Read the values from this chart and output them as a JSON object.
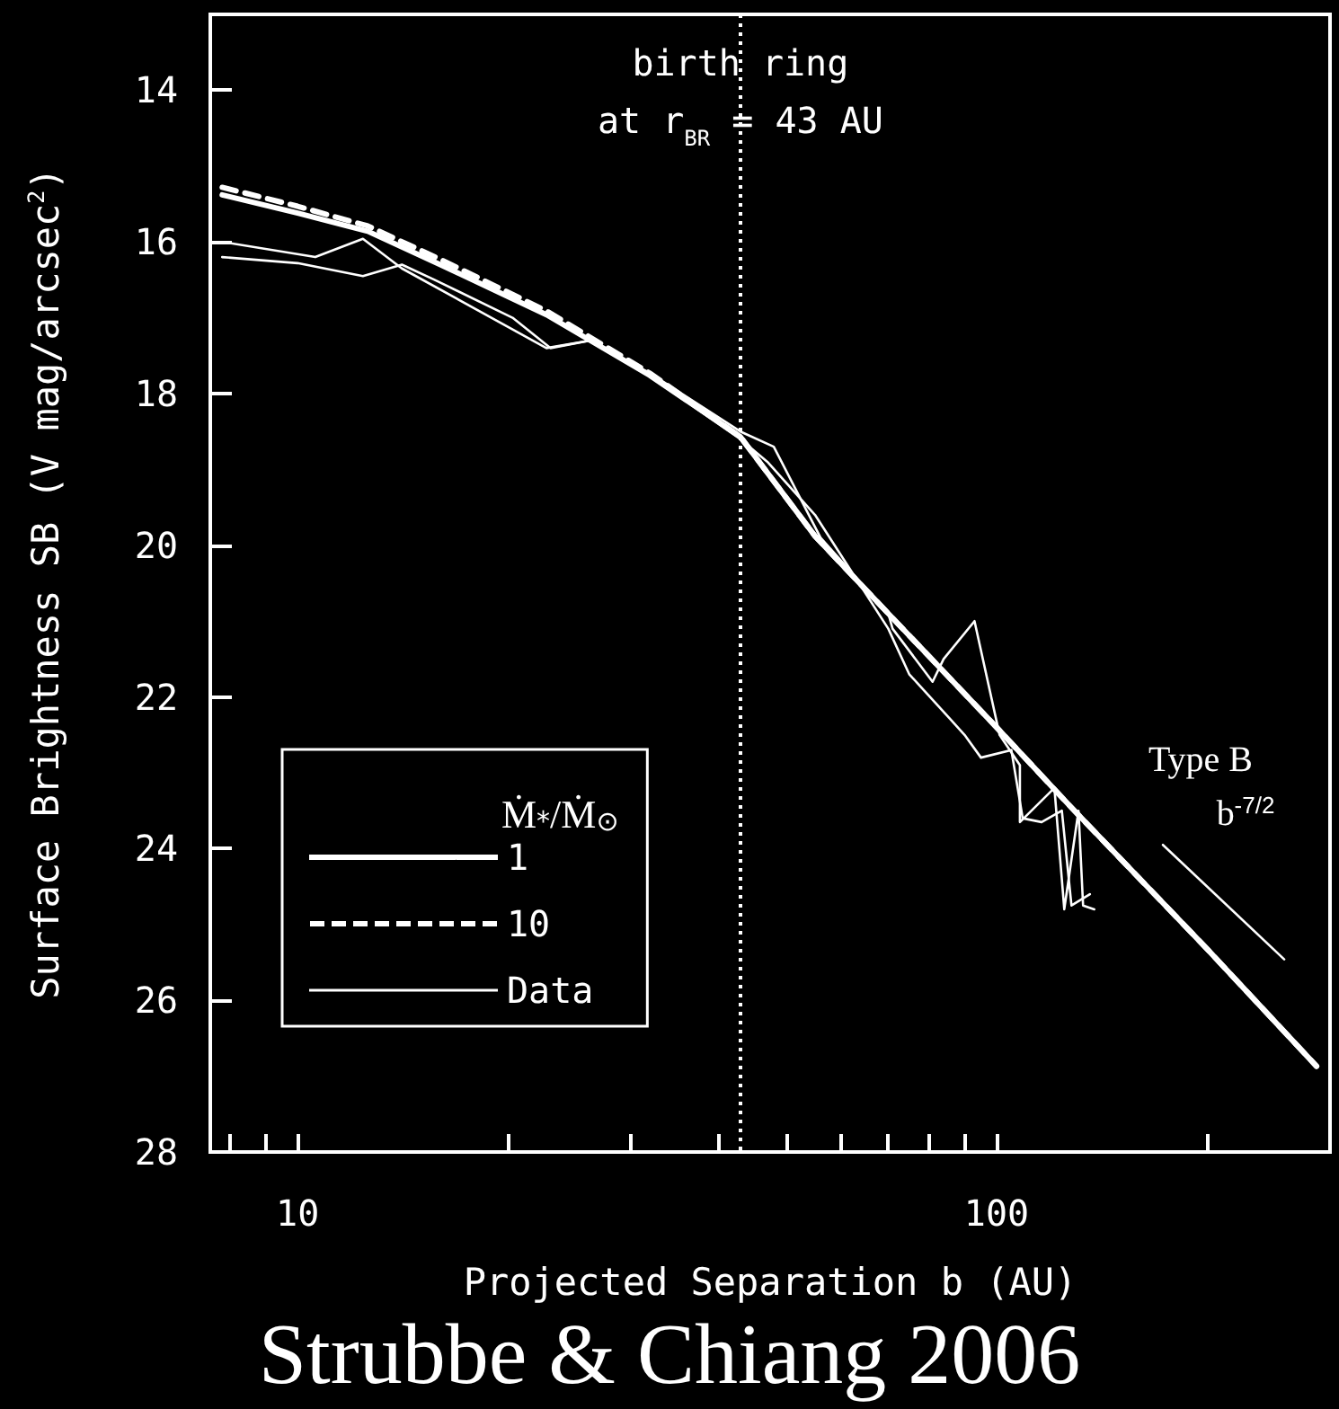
{
  "chart_data": {
    "type": "line",
    "xlabel": "Projected Separation b (AU)",
    "ylabel": "Surface Brightness SB (V mag/arcsec$^{2}$)",
    "legend_title": "Ṁ$_{*}$/Ṁ$_{⊙}$",
    "log": "x",
    "xlim": [
      7.5,
      300
    ],
    "ylim": [
      28,
      13
    ],
    "xticks": [
      {
        "value": 8,
        "label": null
      },
      {
        "value": 9,
        "label": null
      },
      10,
      {
        "value": 20,
        "label": null
      },
      {
        "value": 30,
        "label": null
      },
      {
        "value": 40,
        "label": null
      },
      {
        "value": 50,
        "label": null
      },
      {
        "value": 60,
        "label": null
      },
      {
        "value": 70,
        "label": null
      },
      {
        "value": 80,
        "label": null
      },
      {
        "value": 90,
        "label": null
      },
      100,
      {
        "value": 200,
        "label": null
      },
      {
        "value": 300,
        "label": null
      }
    ],
    "yticks": [
      14,
      16,
      18,
      20,
      22,
      24,
      26,
      28
    ],
    "grid": false,
    "legend": "bottom left",
    "marker": "none",
    "series": [
      {
        "name": "1",
        "color": "#ffffff",
        "line_style": "solid",
        "x": [
          7.8,
          10,
          12.6,
          16,
          22.7,
          31.9,
          43,
          55,
          70,
          100,
          128,
          200,
          287
        ],
        "values": [
          15.38,
          15.62,
          15.86,
          16.3,
          16.96,
          17.76,
          18.57,
          19.88,
          20.9,
          22.4,
          23.46,
          25.32,
          26.87
        ]
      },
      {
        "name": "10",
        "color": "#ffffff",
        "line_style": "dashed",
        "x": [
          7.8,
          10,
          12.6,
          16,
          22.7,
          31.9,
          43,
          55,
          70,
          100,
          128,
          200,
          287
        ],
        "values": [
          15.28,
          15.53,
          15.79,
          16.23,
          16.91,
          17.73,
          18.57,
          19.88,
          20.9,
          22.4,
          23.46,
          25.32,
          26.87
        ]
      },
      {
        "name": "Data",
        "color": "#ffffff",
        "line_style": "solid",
        "x": [
          7.8,
          10.6,
          12.4,
          14.1,
          22.7,
          26.2,
          31.9,
          43,
          48,
          56,
          70,
          71,
          81,
          84,
          93,
          101,
          108,
          108,
          121,
          125,
          131,
          133,
          138
        ],
        "values": [
          16.0,
          16.2,
          15.96,
          16.35,
          17.4,
          17.3,
          17.73,
          18.5,
          18.7,
          19.9,
          20.9,
          21.1,
          21.8,
          21.5,
          21.0,
          22.5,
          22.9,
          23.65,
          23.2,
          24.8,
          23.5,
          24.75,
          24.8
        ]
      },
      {
        "color": "#ffffff",
        "line_style": "solid",
        "x": [
          7.8,
          10,
          12.4,
          14.1,
          15.7,
          20.3,
          23,
          26.2,
          30,
          43,
          47,
          55,
          70,
          75,
          86,
          90,
          95,
          105,
          109,
          116,
          124,
          128,
          136
        ],
        "values": [
          16.2,
          16.28,
          16.45,
          16.3,
          16.5,
          17.0,
          17.4,
          17.3,
          17.6,
          18.6,
          18.9,
          19.6,
          21.1,
          21.7,
          22.3,
          22.5,
          22.8,
          22.7,
          23.6,
          23.65,
          23.5,
          24.75,
          24.6
        ]
      },
      {
        "color": "#ffffff",
        "line_style": "solid",
        "x": [
          173,
          258
        ],
        "values": [
          23.95,
          25.46
        ]
      }
    ],
    "ref_lines": [
      {
        "axis": "x",
        "value": 43,
        "label": "birth ring\nat r$_{BR}$ = 43 AU",
        "line_style": "dotted",
        "color": "#ffffff"
      }
    ],
    "annotations": [
      "Type B",
      "b$^{-7/2}$",
      "Strubbe & Chiang 2006"
    ]
  }
}
